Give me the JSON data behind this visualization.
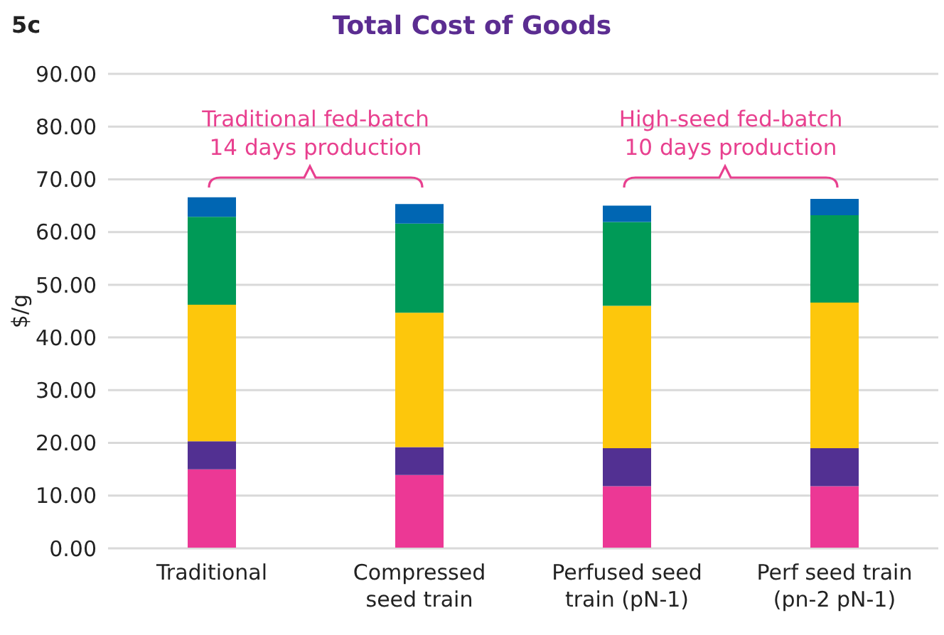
{
  "chart_data": {
    "type": "bar",
    "title": "Total Cost of Goods",
    "ylabel": "$/g",
    "annotations": [
      "5c",
      "Traditional fed-batch\n14 days production",
      "High-seed fed-batch\n10 days production"
    ],
    "categories": [
      "Traditional",
      "Compressed\nseed train",
      "Perfused seed\ntrain (pN-1)",
      "Perf seed train\n(pn-2 pN-1)"
    ],
    "stacked": true,
    "series": [
      {
        "color": "#ec3895",
        "values": [
          15.0,
          13.9,
          11.8,
          11.8
        ]
      },
      {
        "color": "#523092",
        "values": [
          5.3,
          5.3,
          7.2,
          7.2
        ]
      },
      {
        "color": "#fdc70c",
        "values": [
          25.9,
          25.5,
          27.0,
          27.6
        ]
      },
      {
        "color": "#009a57",
        "values": [
          16.7,
          16.9,
          15.9,
          16.6
        ]
      },
      {
        "color": "#0066b3",
        "values": [
          3.7,
          3.7,
          3.1,
          3.1
        ]
      }
    ],
    "ylim": [
      0,
      90
    ],
    "yticks": [
      {
        "value": 0,
        "label": "0.00"
      },
      {
        "value": 10,
        "label": "10.00"
      },
      {
        "value": 20,
        "label": "20.00"
      },
      {
        "value": 30,
        "label": "30.00"
      },
      {
        "value": 40,
        "label": "40.00"
      },
      {
        "value": 50,
        "label": "50.00"
      },
      {
        "value": 60,
        "label": "60.00"
      },
      {
        "value": 70,
        "label": "70.00"
      },
      {
        "value": 80,
        "label": "80.00"
      },
      {
        "value": 90,
        "label": "90.00"
      }
    ],
    "grid": "y",
    "legend": false
  }
}
